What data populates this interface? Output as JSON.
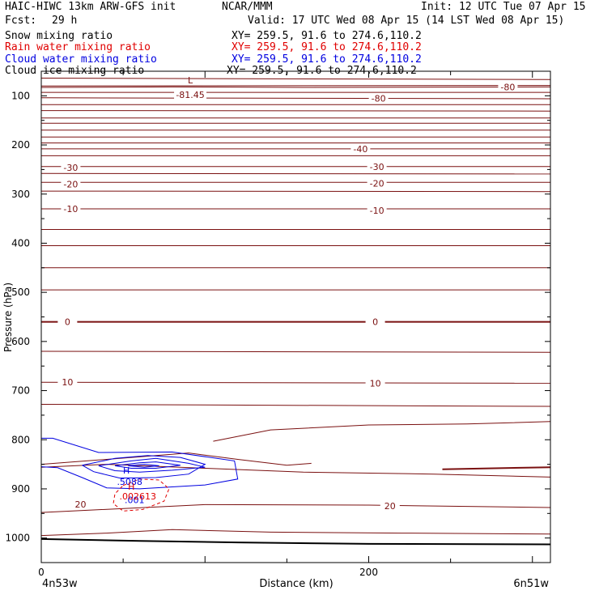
{
  "header": {
    "model": "HAIC-HIWC 13km ARW-GFS init",
    "org": "NCAR/MMM",
    "init": "Init: 12 UTC Tue 07 Apr 15",
    "fcst_label": "Fcst:",
    "fcst_value": "29 h",
    "valid": "Valid: 17 UTC Wed 08 Apr 15 (14 LST Wed 08 Apr 15)"
  },
  "fields": [
    {
      "name": "Snow mixing ratio",
      "xy": "XY= 259.5, 91.6 to 274.6,110.2",
      "color": "#000000"
    },
    {
      "name": "Rain water mixing ratio",
      "xy": "XY= 259.5, 91.6 to 274.6,110.2",
      "color": "#e00000"
    },
    {
      "name": "Cloud water mixing ratio",
      "xy": "XY= 259.5, 91.6 to 274.6,110.2",
      "color": "#0000e0"
    },
    {
      "name": "Cloud ice mixing ratio",
      "xy": "XY= 259.5, 91.6 to 274.6,110.2",
      "color": "#000000"
    }
  ],
  "chart_data": {
    "type": "line",
    "xlabel": "Distance (km)",
    "ylabel": "Pressure (hPa)",
    "xlim": [
      0,
      311
    ],
    "ylim": [
      1050,
      50
    ],
    "x_ticks": [
      0,
      200
    ],
    "y_ticks": [
      100,
      200,
      300,
      400,
      500,
      600,
      700,
      800,
      900,
      1000
    ],
    "left_endpoint": "4n53w",
    "right_endpoint": "6n51w",
    "temperature_contours": {
      "color": "#7a1010",
      "levels": [
        -80,
        -70,
        -60,
        -50,
        -40,
        -30,
        -20,
        -10,
        0,
        10,
        20
      ],
      "labels": [
        {
          "text": "-80",
          "x": 285,
          "p": 82
        },
        {
          "text": "-80",
          "x": 206,
          "p": 105
        },
        {
          "text": "-40",
          "x": 195,
          "p": 208
        },
        {
          "text": "-30",
          "x": 18,
          "p": 246
        },
        {
          "text": "-30",
          "x": 205,
          "p": 244
        },
        {
          "text": "-20",
          "x": 18,
          "p": 280
        },
        {
          "text": "-20",
          "x": 205,
          "p": 278
        },
        {
          "text": "-10",
          "x": 18,
          "p": 330
        },
        {
          "text": "-10",
          "x": 205,
          "p": 333
        },
        {
          "text": "0",
          "x": 16,
          "p": 560
        },
        {
          "text": "0",
          "x": 204,
          "p": 560
        },
        {
          "text": "10",
          "x": 16,
          "p": 683
        },
        {
          "text": "10",
          "x": 204,
          "p": 685
        },
        {
          "text": "20",
          "x": 24,
          "p": 931
        },
        {
          "text": "20",
          "x": 213,
          "p": 935
        }
      ],
      "low_marker": {
        "symbol": "L",
        "value": "-81.45",
        "x": 91,
        "p": 91
      }
    },
    "cloud_water": {
      "color": "#0000e0",
      "max_marker": {
        "symbol": "H",
        "value": ".5088",
        "x": 53,
        "p": 875
      },
      "outer_label": ".001"
    },
    "rain_water": {
      "color": "#e00000",
      "max_marker": {
        "symbol": "H",
        "value": ".002613",
        "x": 57,
        "p": 912
      }
    }
  }
}
